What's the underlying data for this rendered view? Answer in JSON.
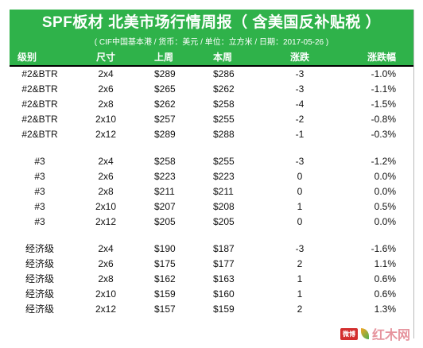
{
  "title": "SPF板材 北美市场行情周报（ 含美国反补贴税 ）",
  "subtitle": "( CIF中国基本港 / 货币：美元 / 单位：立方米 / 日期：2017-05-26 )",
  "columns": [
    "级别",
    "尺寸",
    "上周",
    "本周",
    "涨跌",
    "涨跌幅"
  ],
  "groups": [
    {
      "rows": [
        [
          "#2&BTR",
          "2x4",
          "$289",
          "$286",
          "-3",
          "-1.0%"
        ],
        [
          "#2&BTR",
          "2x6",
          "$265",
          "$262",
          "-3",
          "-1.1%"
        ],
        [
          "#2&BTR",
          "2x8",
          "$262",
          "$258",
          "-4",
          "-1.5%"
        ],
        [
          "#2&BTR",
          "2x10",
          "$257",
          "$255",
          "-2",
          "-0.8%"
        ],
        [
          "#2&BTR",
          "2x12",
          "$289",
          "$288",
          "-1",
          "-0.3%"
        ]
      ]
    },
    {
      "rows": [
        [
          "#3",
          "2x4",
          "$258",
          "$255",
          "-3",
          "-1.2%"
        ],
        [
          "#3",
          "2x6",
          "$223",
          "$223",
          "0",
          "0.0%"
        ],
        [
          "#3",
          "2x8",
          "$211",
          "$211",
          "0",
          "0.0%"
        ],
        [
          "#3",
          "2x10",
          "$207",
          "$208",
          "1",
          "0.5%"
        ],
        [
          "#3",
          "2x12",
          "$205",
          "$205",
          "0",
          "0.0%"
        ]
      ]
    },
    {
      "rows": [
        [
          "经济级",
          "2x4",
          "$190",
          "$187",
          "-3",
          "-1.6%"
        ],
        [
          "经济级",
          "2x6",
          "$175",
          "$177",
          "2",
          "1.1%"
        ],
        [
          "经济级",
          "2x8",
          "$162",
          "$163",
          "1",
          "0.6%"
        ],
        [
          "经济级",
          "2x10",
          "$159",
          "$160",
          "1",
          "0.6%"
        ],
        [
          "经济级",
          "2x12",
          "$157",
          "$159",
          "2",
          "1.3%"
        ]
      ]
    }
  ],
  "watermark": {
    "badge": "微博",
    "text": "红木网"
  }
}
